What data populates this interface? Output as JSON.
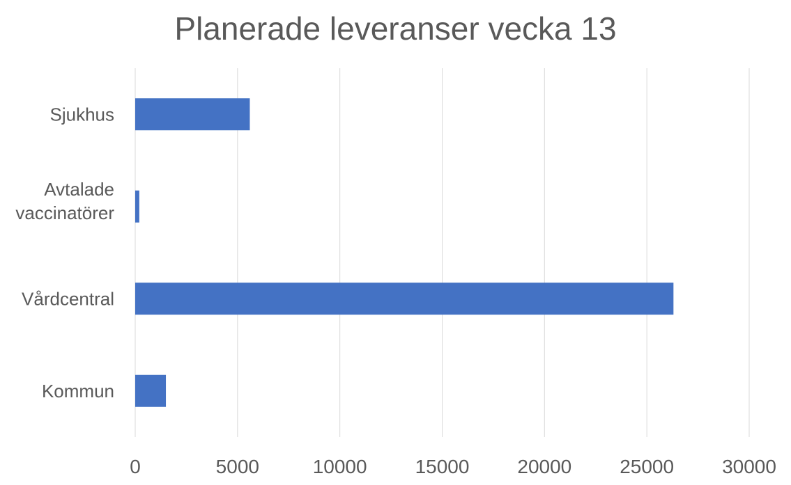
{
  "chart_data": {
    "type": "bar",
    "orientation": "horizontal",
    "title": "Planerade leveranser vecka 13",
    "xlabel": "",
    "ylabel": "",
    "categories": [
      "Sjukhus",
      "Avtalade vaccinatörer",
      "Vårdcentral",
      "Kommun"
    ],
    "values": [
      5600,
      200,
      26300,
      1500
    ],
    "xlim": [
      0,
      30000
    ],
    "xticks": [
      0,
      5000,
      10000,
      15000,
      20000,
      25000,
      30000
    ],
    "grid": "vertical",
    "legend": "none",
    "bar_color": "#4472C4",
    "grid_color": "#D9D9D9",
    "text_color": "#595959"
  }
}
